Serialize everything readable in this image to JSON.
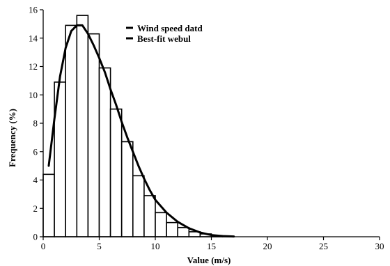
{
  "chart_data": {
    "type": "bar",
    "title": "",
    "xlabel": "Value (m/s)",
    "ylabel": "Frequency (%)",
    "xlim": [
      0,
      30
    ],
    "ylim": [
      0,
      16
    ],
    "xticks": [
      0,
      5,
      10,
      15,
      20,
      25,
      30
    ],
    "yticks": [
      0,
      2,
      4,
      6,
      8,
      10,
      12,
      14,
      16
    ],
    "grid": false,
    "legend_position": "top-center",
    "bar_width": 1,
    "series": [
      {
        "name": "Wind speed datd",
        "kind": "histogram",
        "bin_starts": [
          0,
          1,
          2,
          3,
          4,
          5,
          6,
          7,
          8,
          9,
          10,
          11,
          12,
          13,
          14,
          15,
          16
        ],
        "values": [
          4.4,
          10.9,
          14.9,
          15.6,
          14.3,
          11.9,
          9.0,
          6.7,
          4.3,
          2.9,
          1.7,
          1.0,
          0.65,
          0.35,
          0.2,
          0.08,
          0.03
        ]
      },
      {
        "name": "Best-fit webul",
        "kind": "line",
        "x": [
          0.5,
          1.0,
          1.5,
          2.0,
          2.5,
          3.0,
          3.5,
          4.0,
          4.5,
          5.0,
          5.5,
          6.0,
          6.5,
          7.0,
          7.5,
          8.0,
          8.5,
          9.0,
          9.5,
          10.0,
          11.0,
          12.0,
          13.0,
          14.0,
          15.0,
          16.0,
          17.0
        ],
        "y": [
          5.0,
          8.3,
          11.3,
          13.3,
          14.5,
          14.9,
          14.9,
          14.3,
          13.5,
          12.6,
          11.6,
          10.4,
          9.3,
          8.1,
          7.0,
          6.0,
          5.0,
          4.1,
          3.3,
          2.6,
          1.7,
          1.05,
          0.6,
          0.3,
          0.12,
          0.05,
          0.02
        ]
      }
    ]
  }
}
